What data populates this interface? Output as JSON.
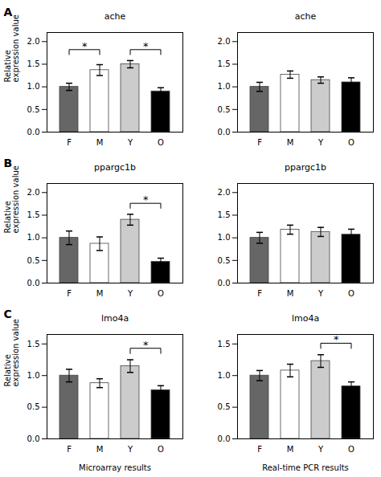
{
  "chart_data": [
    {
      "type": "bar",
      "title": "ache",
      "categories": [
        "F",
        "M",
        "Y",
        "O"
      ],
      "values": [
        1.0,
        1.37,
        1.5,
        0.9
      ],
      "errors": [
        0.08,
        0.12,
        0.08,
        0.08
      ],
      "colors": [
        "#666666",
        "#ffffff",
        "#cccccc",
        "#000000"
      ],
      "ylim": [
        0,
        2.2
      ],
      "yticks": [
        {
          "value": 0,
          "label": "0.0"
        },
        0.5,
        {
          "value": 1.0,
          "label": "1.0"
        },
        1.5,
        {
          "value": 2.0,
          "label": "2.0"
        }
      ],
      "ylabel": "Relative\nexpression value",
      "annotations": [
        {
          "text": "A"
        },
        {
          "text": "*",
          "from": "F",
          "to": "M"
        },
        {
          "text": "*",
          "from": "Y",
          "to": "O"
        }
      ]
    },
    {
      "type": "bar",
      "title": "ache",
      "categories": [
        "F",
        "M",
        "Y",
        "O"
      ],
      "values": [
        1.0,
        1.27,
        1.15,
        1.1
      ],
      "errors": [
        0.1,
        0.08,
        0.07,
        0.1
      ],
      "colors": [
        "#666666",
        "#ffffff",
        "#cccccc",
        "#000000"
      ],
      "ylim": [
        0,
        2.2
      ],
      "yticks": [
        {
          "value": 0,
          "label": "0.0"
        },
        0.5,
        {
          "value": 1.0,
          "label": "1.0"
        },
        1.5,
        {
          "value": 2.0,
          "label": "2.0"
        }
      ]
    },
    {
      "type": "bar",
      "title": "ppargc1b",
      "categories": [
        "F",
        "M",
        "Y",
        "O"
      ],
      "values": [
        1.0,
        0.87,
        1.4,
        0.47
      ],
      "errors": [
        0.15,
        0.15,
        0.12,
        0.08
      ],
      "colors": [
        "#666666",
        "#ffffff",
        "#cccccc",
        "#000000"
      ],
      "ylim": [
        0,
        2.2
      ],
      "yticks": [
        {
          "value": 0,
          "label": "0.0"
        },
        0.5,
        {
          "value": 1.0,
          "label": "1.0"
        },
        1.5,
        {
          "value": 2.0,
          "label": "2.0"
        }
      ],
      "ylabel": "Relative\nexpression value",
      "annotations": [
        {
          "text": "B"
        },
        {
          "text": "*",
          "from": "Y",
          "to": "O"
        }
      ]
    },
    {
      "type": "bar",
      "title": "ppargc1b",
      "categories": [
        "F",
        "M",
        "Y",
        "O"
      ],
      "values": [
        1.0,
        1.18,
        1.13,
        1.07
      ],
      "errors": [
        0.12,
        0.1,
        0.1,
        0.12
      ],
      "colors": [
        "#666666",
        "#ffffff",
        "#cccccc",
        "#000000"
      ],
      "ylim": [
        0,
        2.2
      ],
      "yticks": [
        {
          "value": 0,
          "label": "0.0"
        },
        0.5,
        {
          "value": 1.0,
          "label": "1.0"
        },
        1.5,
        {
          "value": 2.0,
          "label": "2.0"
        }
      ]
    },
    {
      "type": "bar",
      "title": "lmo4a",
      "categories": [
        "F",
        "M",
        "Y",
        "O"
      ],
      "values": [
        1.0,
        0.88,
        1.15,
        0.77
      ],
      "errors": [
        0.1,
        0.07,
        0.1,
        0.07
      ],
      "colors": [
        "#666666",
        "#ffffff",
        "#cccccc",
        "#000000"
      ],
      "ylim": [
        0,
        1.65
      ],
      "yticks": [
        {
          "value": 0,
          "label": "0.0"
        },
        0.5,
        {
          "value": 1.0,
          "label": "1.0"
        },
        1.5
      ],
      "ylabel": "Relative\nexpression value",
      "xlabel": "Microarray results",
      "annotations": [
        {
          "text": "C"
        },
        {
          "text": "*",
          "from": "Y",
          "to": "O"
        }
      ]
    },
    {
      "type": "bar",
      "title": "lmo4a",
      "categories": [
        "F",
        "M",
        "Y",
        "O"
      ],
      "values": [
        1.0,
        1.08,
        1.23,
        0.83
      ],
      "errors": [
        0.08,
        0.1,
        0.1,
        0.07
      ],
      "colors": [
        "#666666",
        "#ffffff",
        "#cccccc",
        "#000000"
      ],
      "ylim": [
        0,
        1.65
      ],
      "yticks": [
        {
          "value": 0,
          "label": "0.0"
        },
        0.5,
        {
          "value": 1.0,
          "label": "1.0"
        },
        1.5
      ],
      "xlabel": "Real-time PCR results",
      "annotations": [
        {
          "text": "*",
          "from": "Y",
          "to": "O"
        }
      ]
    }
  ]
}
